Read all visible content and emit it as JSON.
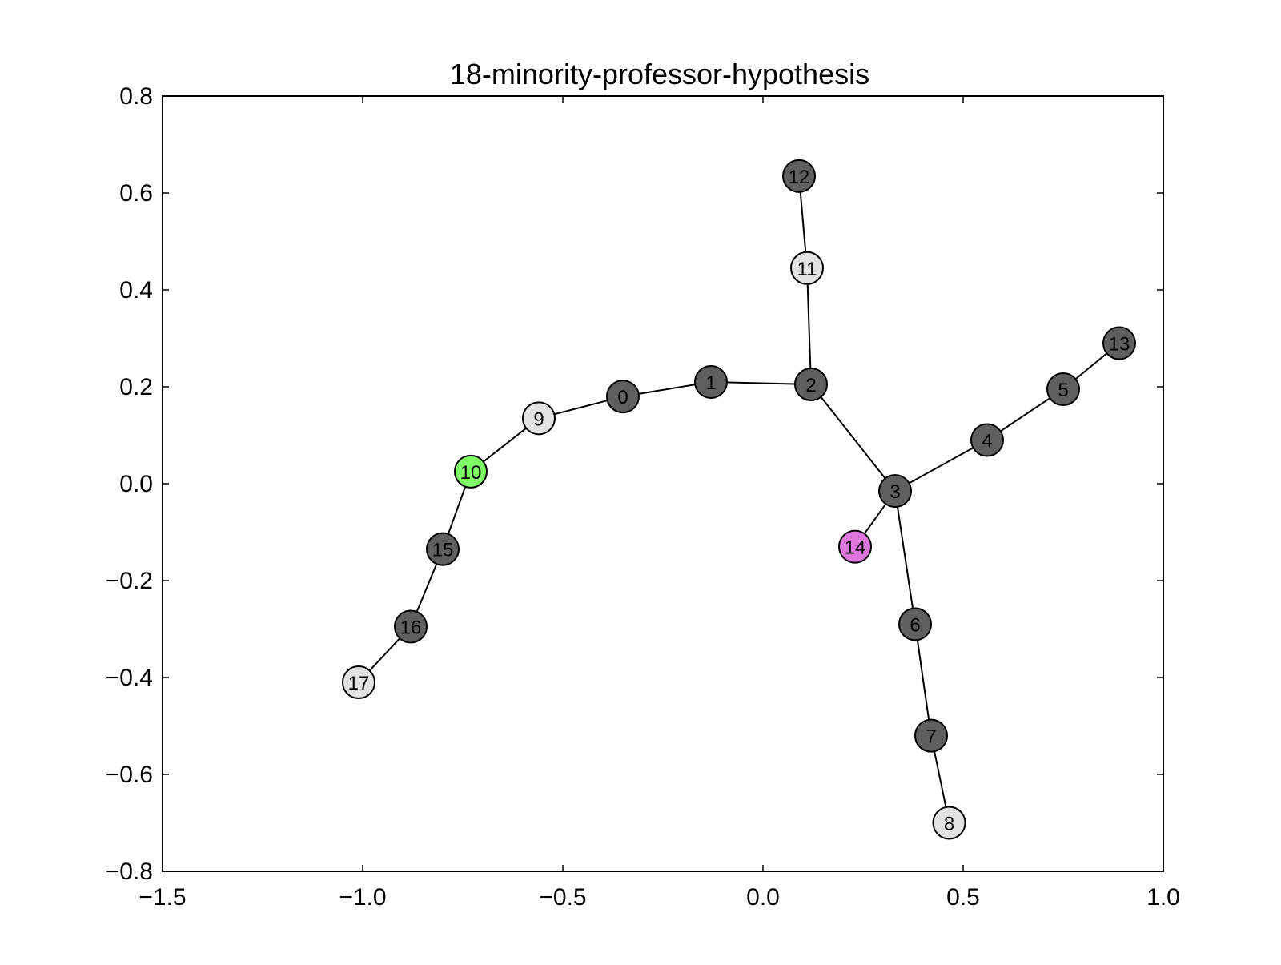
{
  "chart_data": {
    "type": "network",
    "title": "18-minority-professor-hypothesis",
    "xlabel": "",
    "ylabel": "",
    "xlim": [
      -1.5,
      1.0
    ],
    "ylim": [
      -0.8,
      0.8
    ],
    "xticks": [
      -1.5,
      -1.0,
      -0.5,
      0.0,
      0.5,
      1.0
    ],
    "xtick_labels": [
      "−1.5",
      "−1.0",
      "−0.5",
      "0.0",
      "0.5",
      "1.0"
    ],
    "yticks": [
      0.8,
      0.6,
      0.4,
      0.2,
      0.0,
      -0.2,
      -0.4,
      -0.6,
      -0.8
    ],
    "ytick_labels": [
      "0.8",
      "0.6",
      "0.4",
      "0.2",
      "0.0",
      "−0.2",
      "−0.4",
      "−0.6",
      "−0.8"
    ],
    "grid": false,
    "legend": false,
    "colors": {
      "dark": "#5f5f5f",
      "light": "#e2e2e2",
      "green": "#7fff66",
      "purple": "#dd77dd",
      "edge": "#000000"
    },
    "nodes": [
      {
        "id": "0",
        "x": -0.35,
        "y": 0.18,
        "color": "dark"
      },
      {
        "id": "1",
        "x": -0.13,
        "y": 0.21,
        "color": "dark"
      },
      {
        "id": "2",
        "x": 0.12,
        "y": 0.205,
        "color": "dark"
      },
      {
        "id": "3",
        "x": 0.33,
        "y": -0.015,
        "color": "dark"
      },
      {
        "id": "4",
        "x": 0.56,
        "y": 0.09,
        "color": "dark"
      },
      {
        "id": "5",
        "x": 0.75,
        "y": 0.195,
        "color": "dark"
      },
      {
        "id": "6",
        "x": 0.38,
        "y": -0.29,
        "color": "dark"
      },
      {
        "id": "7",
        "x": 0.42,
        "y": -0.52,
        "color": "dark"
      },
      {
        "id": "8",
        "x": 0.465,
        "y": -0.7,
        "color": "light"
      },
      {
        "id": "9",
        "x": -0.56,
        "y": 0.135,
        "color": "light"
      },
      {
        "id": "10",
        "x": -0.73,
        "y": 0.025,
        "color": "green"
      },
      {
        "id": "11",
        "x": 0.11,
        "y": 0.445,
        "color": "light"
      },
      {
        "id": "12",
        "x": 0.09,
        "y": 0.635,
        "color": "dark"
      },
      {
        "id": "13",
        "x": 0.89,
        "y": 0.29,
        "color": "dark"
      },
      {
        "id": "14",
        "x": 0.23,
        "y": -0.13,
        "color": "purple"
      },
      {
        "id": "15",
        "x": -0.8,
        "y": -0.135,
        "color": "dark"
      },
      {
        "id": "16",
        "x": -0.88,
        "y": -0.295,
        "color": "dark"
      },
      {
        "id": "17",
        "x": -1.01,
        "y": -0.41,
        "color": "light"
      }
    ],
    "edges": [
      [
        "17",
        "16"
      ],
      [
        "16",
        "15"
      ],
      [
        "15",
        "10"
      ],
      [
        "10",
        "9"
      ],
      [
        "9",
        "0"
      ],
      [
        "0",
        "1"
      ],
      [
        "1",
        "2"
      ],
      [
        "2",
        "11"
      ],
      [
        "11",
        "12"
      ],
      [
        "2",
        "3"
      ],
      [
        "3",
        "4"
      ],
      [
        "4",
        "5"
      ],
      [
        "5",
        "13"
      ],
      [
        "3",
        "14"
      ],
      [
        "3",
        "6"
      ],
      [
        "6",
        "7"
      ],
      [
        "7",
        "8"
      ]
    ]
  }
}
